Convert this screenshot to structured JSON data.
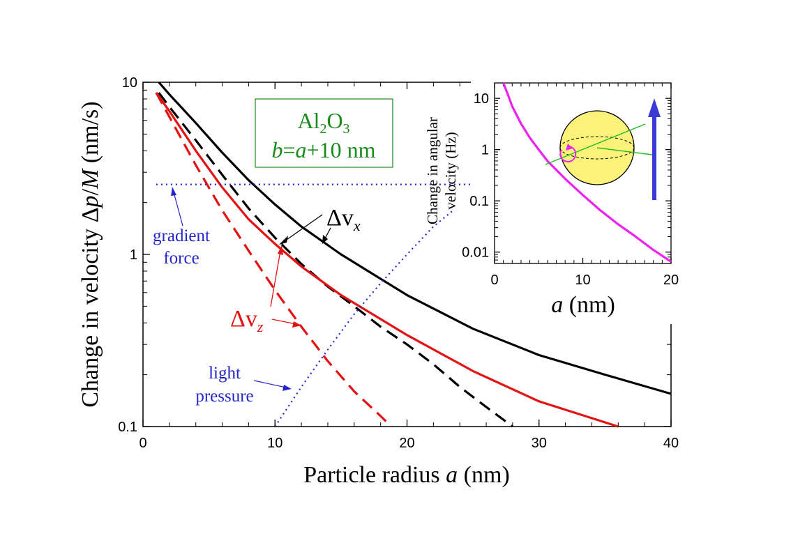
{
  "chart_data": [
    {
      "type": "line",
      "title": "",
      "xlabel": "Particle radius a (nm)",
      "ylabel": "Change in velocity Δp/M (nm/s)",
      "yscale": "log",
      "xlim": [
        0,
        40
      ],
      "ylim": [
        0.1,
        10
      ],
      "xticks": [
        0,
        10,
        20,
        30,
        40
      ],
      "yticks": [
        0.1,
        1,
        10
      ],
      "xtick_labels": [
        "0",
        "10",
        "20",
        "30",
        "40"
      ],
      "ytick_labels": [
        "0.1",
        "1",
        "10"
      ],
      "series": [
        {
          "name": "Δv_x (solid)",
          "color": "#000000",
          "style": "solid",
          "x": [
            1.2,
            2,
            4,
            6,
            8,
            10,
            12,
            15,
            20,
            25,
            30,
            35,
            40
          ],
          "y": [
            10,
            8.5,
            5.8,
            3.9,
            2.7,
            1.95,
            1.45,
            1.0,
            0.58,
            0.37,
            0.26,
            0.2,
            0.155
          ]
        },
        {
          "name": "Δv_x (dashed)",
          "color": "#000000",
          "style": "dashed",
          "x": [
            1.2,
            2,
            4,
            6,
            8,
            10,
            12,
            14,
            16,
            18,
            20,
            22,
            24,
            26,
            28
          ],
          "y": [
            8.7,
            7.2,
            4.6,
            2.9,
            1.85,
            1.25,
            0.88,
            0.65,
            0.5,
            0.38,
            0.3,
            0.23,
            0.17,
            0.13,
            0.1
          ]
        },
        {
          "name": "Δv_z (solid)",
          "color": "#e41212",
          "style": "solid",
          "x": [
            1,
            2,
            4,
            6,
            8,
            10,
            12,
            15,
            20,
            25,
            30,
            36
          ],
          "y": [
            8.7,
            6.8,
            4.0,
            2.45,
            1.6,
            1.15,
            0.85,
            0.58,
            0.34,
            0.21,
            0.14,
            0.1
          ]
        },
        {
          "name": "Δv_z (dashed)",
          "color": "#e41212",
          "style": "dashed",
          "x": [
            1,
            2,
            4,
            6,
            8,
            10,
            12,
            14,
            16,
            18,
            18.8
          ],
          "y": [
            8.7,
            6.3,
            3.3,
            1.8,
            1.05,
            0.62,
            0.38,
            0.24,
            0.16,
            0.115,
            0.1
          ]
        },
        {
          "name": "gradient force",
          "color": "#2525cc",
          "style": "dotted",
          "x": [
            1,
            39
          ],
          "y": [
            2.55,
            2.55
          ]
        },
        {
          "name": "light pressure",
          "color": "#2525cc",
          "style": "dotted",
          "x": [
            10,
            12,
            14,
            16,
            18,
            20,
            22,
            23.5
          ],
          "y": [
            0.1,
            0.17,
            0.28,
            0.45,
            0.68,
            1.0,
            1.45,
            1.8
          ]
        }
      ],
      "annotations": {
        "box_line1": "Al",
        "box_line1_sub1": "2",
        "box_line1_mid": "O",
        "box_line1_sub2": "3",
        "box_line2_italic": "b",
        "box_line2_rest1": "=",
        "box_line2_italic2": "a",
        "box_line2_rest2": "+10 nm",
        "dvx_delta": "Δv",
        "dvx_sub": "x",
        "dvz_delta": "Δv",
        "dvz_sub": "z",
        "gradient_line1": "gradient",
        "gradient_line2": "force",
        "light_line1": "light",
        "light_line2": "pressure"
      },
      "label_parts": {
        "x_pre": "Particle radius ",
        "x_var": "a",
        "x_post": " (nm)",
        "y_pre": "Change in velocity Δ",
        "y_var1": "p",
        "y_slash": "/",
        "y_var2": "M",
        "y_post": " (nm/s)"
      }
    },
    {
      "type": "line",
      "title": "",
      "xlabel": "a (nm)",
      "ylabel": "Change in angular velocity (Hz)",
      "yscale": "log",
      "xlim": [
        0,
        20
      ],
      "ylim": [
        0.006,
        20
      ],
      "xticks": [
        0,
        10,
        20
      ],
      "yticks": [
        0.01,
        0.1,
        1,
        10
      ],
      "xtick_labels": [
        "0",
        "10",
        "20"
      ],
      "ytick_labels": [
        "0.01",
        "0.1",
        "1",
        "10"
      ],
      "series": [
        {
          "name": "angular velocity",
          "color": "#ee22ee",
          "style": "solid",
          "x": [
            1.0,
            1.5,
            2,
            3,
            4,
            5,
            6,
            8,
            10,
            12,
            14,
            16,
            18,
            20
          ],
          "y": [
            20,
            12,
            7,
            3.2,
            1.7,
            1.0,
            0.6,
            0.27,
            0.13,
            0.065,
            0.035,
            0.02,
            0.011,
            0.0065
          ]
        }
      ],
      "label_parts": {
        "x_var": "a",
        "x_post": " (nm)",
        "y_line1": "Change in angular",
        "y_line2": "velocity (Hz)"
      }
    }
  ],
  "colors": {
    "black": "#000000",
    "red": "#e41212",
    "blue": "#2525cc",
    "green": "#1a8a1a",
    "magenta": "#ee22ee",
    "sphere": "#fbf27a",
    "arrow": "#3a3ad6"
  }
}
